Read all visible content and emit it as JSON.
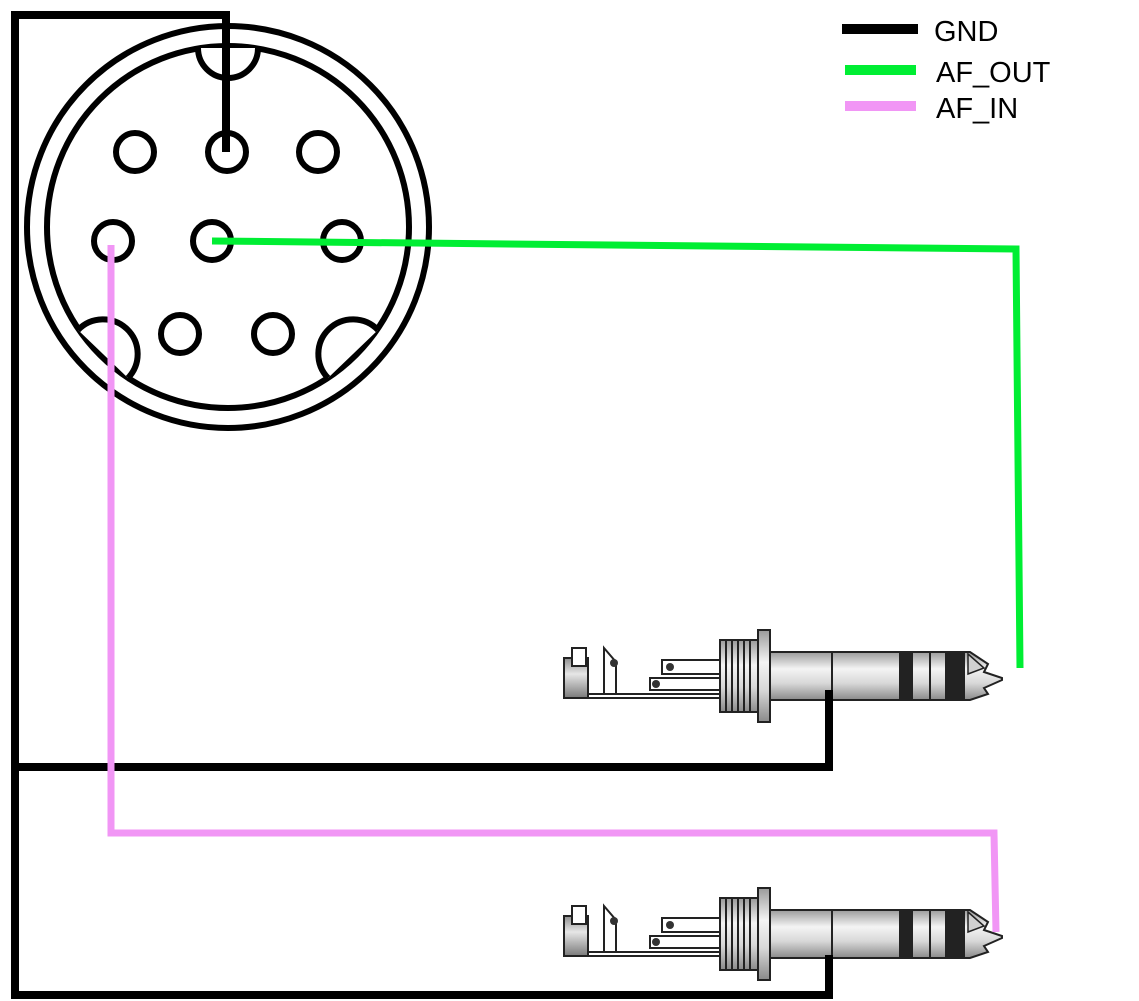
{
  "legend": {
    "items": [
      {
        "label": "GND",
        "color": "#000000"
      },
      {
        "label": "AF_OUT",
        "color": "#00ee33"
      },
      {
        "label": "AF_IN",
        "color": "#f196f5"
      }
    ]
  },
  "connector": {
    "type": "8-pin mini-DIN",
    "pins": 8
  },
  "wires": [
    {
      "signal": "GND",
      "from": "din-top-center-pin",
      "to": [
        "jack-1-sleeve",
        "jack-2-sleeve"
      ]
    },
    {
      "signal": "AF_OUT",
      "from": "din-center-pin",
      "to": "jack-1-tip"
    },
    {
      "signal": "AF_IN",
      "from": "din-middle-left-pin",
      "to": "jack-2-tip"
    }
  ],
  "jacks": [
    {
      "name": "jack-1",
      "type": "TRS plug"
    },
    {
      "name": "jack-2",
      "type": "TRS plug"
    }
  ]
}
